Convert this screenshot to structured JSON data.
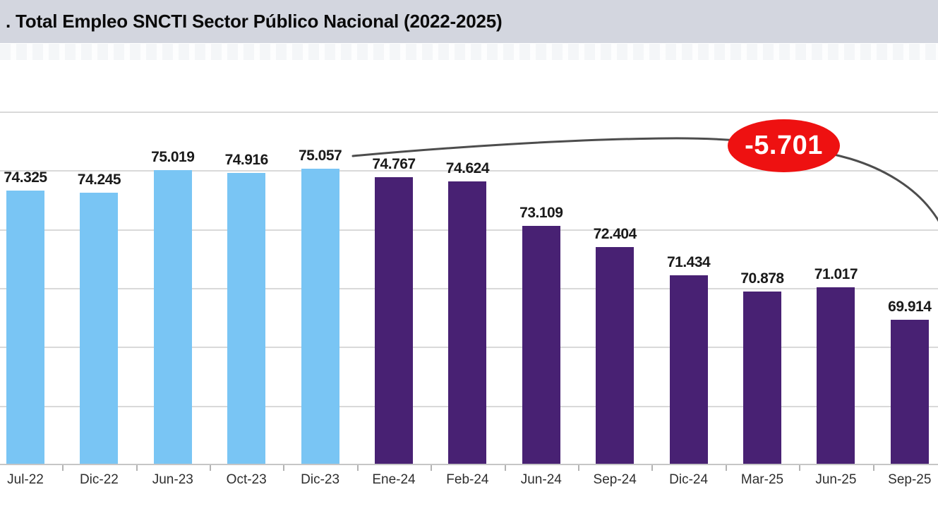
{
  "header": {
    "title": ". Total Empleo SNCTI Sector Público Nacional (2022-2025)"
  },
  "chart_data": {
    "type": "bar",
    "title": ". Total Empleo SNCTI Sector Público Nacional (2022-2025)",
    "categories": [
      "Jul-22",
      "Dic-22",
      "Jun-23",
      "Oct-23",
      "Dic-23",
      "Ene-24",
      "Feb-24",
      "Jun-24",
      "Sep-24",
      "Dic-24",
      "Mar-25",
      "Jun-25",
      "Sep-25"
    ],
    "values": [
      74325,
      74245,
      75019,
      74916,
      75057,
      74767,
      74624,
      73109,
      72404,
      71434,
      70878,
      71017,
      69914
    ],
    "value_labels": [
      "74.325",
      "74.245",
      "75.019",
      "74.916",
      "75.057",
      "74.767",
      "74.624",
      "73.109",
      "72.404",
      "71.434",
      "70.878",
      "71.017",
      "69.914"
    ],
    "bar_colors": [
      "#79c5f4",
      "#79c5f4",
      "#79c5f4",
      "#79c5f4",
      "#79c5f4",
      "#482173",
      "#482173",
      "#482173",
      "#482173",
      "#482173",
      "#482173",
      "#482173",
      "#482173"
    ],
    "xlabel": "",
    "ylabel": "",
    "ylim": [
      65000,
      77000
    ],
    "gridline_step": 2000,
    "grid": true,
    "legend": "none",
    "y_axis_labels_visible": false,
    "annotation": {
      "text": "-5.701",
      "shape": "ellipse",
      "fill": "#ee1111",
      "text_color": "#ffffff"
    }
  },
  "colors": {
    "header_bg": "#d3d6df",
    "bar_blue": "#79c5f4",
    "bar_purple": "#482173",
    "annotation_red": "#ee1111",
    "curve_line": "#4d4d4d",
    "gridline": "#d9d9d9",
    "axis_line": "#c6c6c6"
  }
}
